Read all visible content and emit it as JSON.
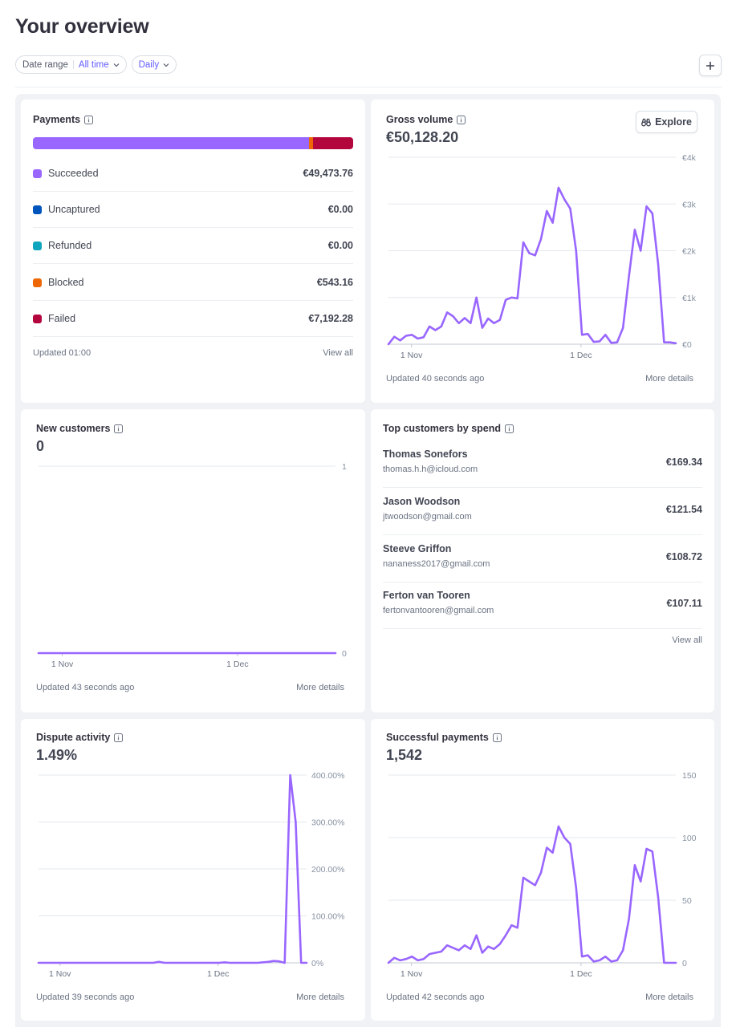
{
  "page": {
    "title": "Your overview"
  },
  "filters": {
    "date_range_label": "Date range",
    "date_range_value": "All time",
    "interval_value": "Daily"
  },
  "icons": {
    "add": "plus-icon",
    "info": "info-icon",
    "explore": "binoculars-icon",
    "chevron": "chevron-down-icon"
  },
  "colors": {
    "accent": "#9966ff",
    "succeeded": "#9966ff",
    "uncaptured": "#0055bc",
    "refunded": "#0fa5bd",
    "blocked": "#ed6804",
    "failed": "#b3063d"
  },
  "payments": {
    "title": "Payments",
    "rows": [
      {
        "label": "Succeeded",
        "amount": "€49,473.76",
        "color": "#9966ff"
      },
      {
        "label": "Uncaptured",
        "amount": "€0.00",
        "color": "#0055bc"
      },
      {
        "label": "Refunded",
        "amount": "€0.00",
        "color": "#0fa5bd"
      },
      {
        "label": "Blocked",
        "amount": "€543.16",
        "color": "#ed6804"
      },
      {
        "label": "Failed",
        "amount": "€7,192.28",
        "color": "#b3063d"
      }
    ],
    "updated": "Updated 01:00",
    "link": "View all"
  },
  "gross_volume": {
    "title": "Gross volume",
    "value": "€50,128.20",
    "explore_label": "Explore",
    "updated": "Updated 40 seconds ago",
    "link": "More details"
  },
  "new_customers": {
    "title": "New customers",
    "value": "0",
    "updated": "Updated 43 seconds ago",
    "link": "More details"
  },
  "top_customers": {
    "title": "Top customers by spend",
    "rows": [
      {
        "name": "Thomas Sonefors",
        "email": "thomas.h.h@icloud.com",
        "amount": "€169.34"
      },
      {
        "name": "Jason Woodson",
        "email": "jtwoodson@gmail.com",
        "amount": "€121.54"
      },
      {
        "name": "Steeve Griffon",
        "email": "nananess2017@gmail.com",
        "amount": "€108.72"
      },
      {
        "name": "Ferton van Tooren",
        "email": "fertonvantooren@gmail.com",
        "amount": "€107.11"
      }
    ],
    "link": "View all"
  },
  "dispute_activity": {
    "title": "Dispute activity",
    "value": "1.49%",
    "updated": "Updated 39 seconds ago",
    "link": "More details"
  },
  "successful_payments": {
    "title": "Successful payments",
    "value": "1,542",
    "updated": "Updated 42 seconds ago",
    "link": "More details"
  },
  "chart_data": [
    {
      "id": "gross_volume",
      "type": "line",
      "x_tick_labels": [
        "1 Nov",
        "1 Dec"
      ],
      "y_tick_labels": [
        "€4k",
        "€3k",
        "€2k",
        "€1k",
        "€0"
      ],
      "ylim": [
        0,
        4000
      ],
      "series": [
        {
          "values": [
            0,
            160,
            80,
            180,
            200,
            120,
            150,
            380,
            300,
            380,
            680,
            600,
            450,
            560,
            450,
            1000,
            350,
            550,
            450,
            520,
            950,
            1000,
            980,
            2180,
            1950,
            1900,
            2250,
            2850,
            2600,
            3350,
            3100,
            2900,
            2000,
            200,
            220,
            50,
            60,
            200,
            30,
            40,
            350,
            1450,
            2450,
            2000,
            2950,
            2800,
            1700,
            40,
            40,
            20
          ]
        }
      ]
    },
    {
      "id": "new_customers",
      "type": "line",
      "x_tick_labels": [
        "1 Nov",
        "1 Dec"
      ],
      "y_tick_labels": [
        "1",
        "0"
      ],
      "ylim": [
        0,
        1
      ],
      "series": [
        {
          "values": [
            0,
            0,
            0,
            0,
            0,
            0,
            0,
            0,
            0,
            0,
            0,
            0,
            0,
            0,
            0,
            0,
            0,
            0,
            0,
            0,
            0,
            0,
            0,
            0,
            0,
            0,
            0,
            0,
            0,
            0,
            0,
            0,
            0,
            0,
            0,
            0,
            0,
            0,
            0,
            0,
            0,
            0,
            0,
            0,
            0,
            0,
            0,
            0,
            0,
            0
          ]
        }
      ]
    },
    {
      "id": "dispute_activity",
      "type": "line",
      "x_tick_labels": [
        "1 Nov",
        "1 Dec"
      ],
      "y_tick_labels": [
        "400.00%",
        "300.00%",
        "200.00%",
        "100.00%",
        "0%"
      ],
      "ylim": [
        0,
        400
      ],
      "series": [
        {
          "values": [
            0,
            0,
            0,
            0,
            0,
            0,
            0,
            0,
            0,
            0,
            0,
            0,
            0,
            0,
            0,
            0,
            0,
            0,
            0,
            0,
            0,
            0,
            2,
            0,
            0,
            0,
            0,
            0,
            0,
            0,
            0,
            0,
            0,
            0,
            1,
            0,
            0,
            0,
            0,
            0,
            0,
            1,
            2,
            4,
            3,
            0,
            400,
            300,
            0,
            0
          ]
        }
      ]
    },
    {
      "id": "successful_payments",
      "type": "line",
      "x_tick_labels": [
        "1 Nov",
        "1 Dec"
      ],
      "y_tick_labels": [
        "150",
        "100",
        "50",
        "0"
      ],
      "ylim": [
        0,
        150
      ],
      "series": [
        {
          "values": [
            0,
            4,
            2,
            3,
            5,
            2,
            3,
            7,
            8,
            9,
            14,
            12,
            10,
            14,
            11,
            22,
            8,
            13,
            11,
            15,
            22,
            30,
            28,
            68,
            65,
            62,
            72,
            92,
            88,
            109,
            100,
            95,
            60,
            5,
            6,
            1,
            2,
            5,
            1,
            2,
            10,
            35,
            78,
            65,
            91,
            89,
            52,
            0,
            0,
            0
          ]
        }
      ]
    }
  ]
}
